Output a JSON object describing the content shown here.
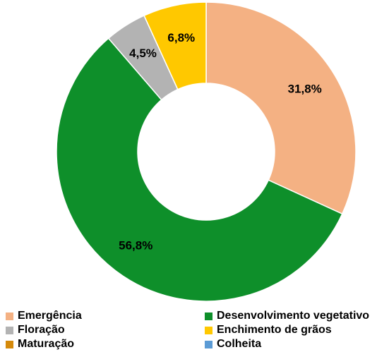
{
  "chart_data": {
    "type": "pie",
    "donut": true,
    "categories": [
      "Emergência",
      "Desenvolvimento vegetativo",
      "Floração",
      "Enchimento de grãos",
      "Maturação",
      "Colheita"
    ],
    "values": [
      31.8,
      56.8,
      4.5,
      6.8,
      0,
      0
    ],
    "data_labels": [
      "31,8%",
      "56,8%",
      "4,5%",
      "6,8%",
      "",
      ""
    ],
    "colors": [
      "#f4b183",
      "#0e8f2a",
      "#b3b3b3",
      "#ffc800",
      "#d58a0b",
      "#5b9bd5"
    ],
    "legend_position": "bottom"
  },
  "legend": [
    {
      "label": "Emergência",
      "color": "#f4b183"
    },
    {
      "label": "Desenvolvimento vegetativo",
      "color": "#0e8f2a"
    },
    {
      "label": "Floração",
      "color": "#b3b3b3"
    },
    {
      "label": "Enchimento de grãos",
      "color": "#ffc800"
    },
    {
      "label": "Maturação",
      "color": "#d58a0b"
    },
    {
      "label": "Colheita",
      "color": "#5b9bd5"
    }
  ]
}
